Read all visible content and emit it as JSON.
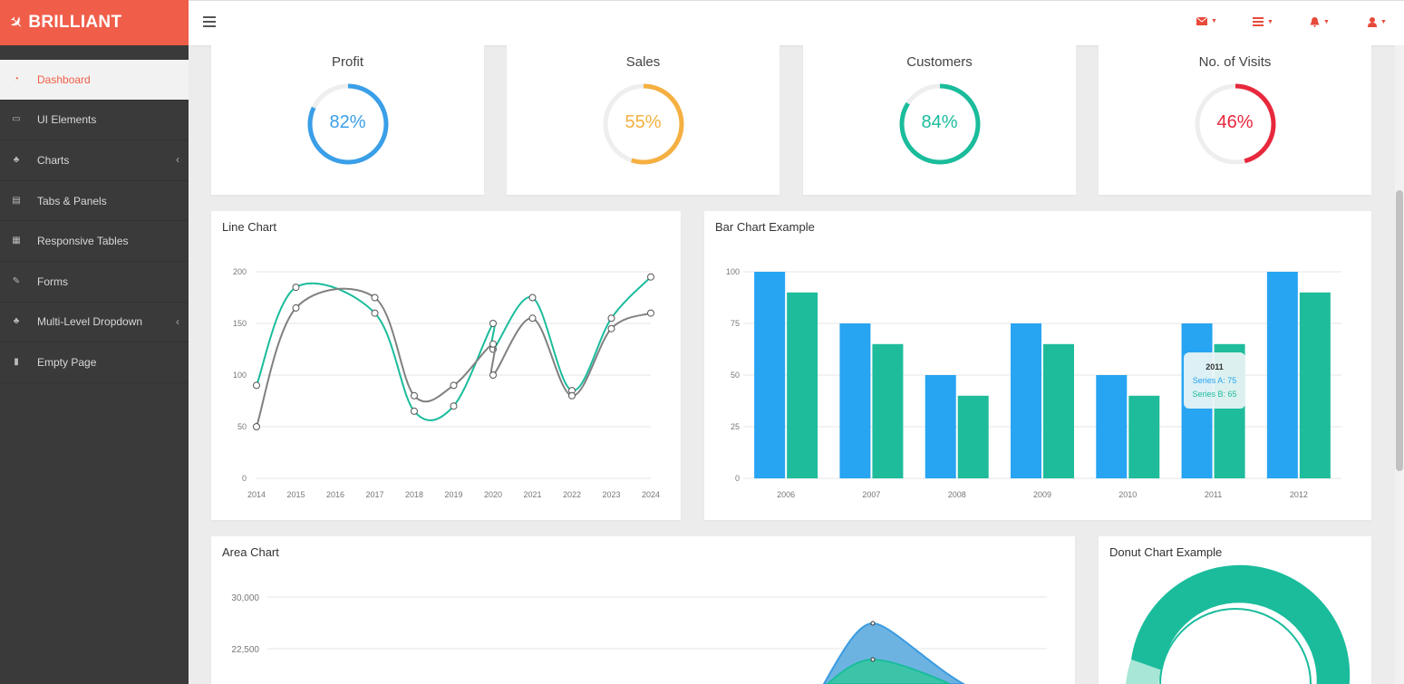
{
  "brand": {
    "name": "BRILLIANT"
  },
  "sidebar": {
    "items": [
      {
        "label": "Dashboard",
        "icon": "dashboard-icon",
        "active": true
      },
      {
        "label": "UI Elements",
        "icon": "desktop-icon"
      },
      {
        "label": "Charts",
        "icon": "sitemap-icon",
        "has_children": true
      },
      {
        "label": "Tabs & Panels",
        "icon": "panels-icon"
      },
      {
        "label": "Responsive Tables",
        "icon": "table-icon"
      },
      {
        "label": "Forms",
        "icon": "edit-icon"
      },
      {
        "label": "Multi-Level Dropdown",
        "icon": "sitemap-icon",
        "has_children": true
      },
      {
        "label": "Empty Page",
        "icon": "file-icon"
      }
    ]
  },
  "topbar": {
    "icons": [
      "envelope-icon",
      "tasks-icon",
      "bell-icon",
      "user-icon"
    ],
    "accent": "#e84a3a"
  },
  "stats": [
    {
      "title": "Profit",
      "value": 82,
      "label": "82%",
      "color": "#3a9fe8"
    },
    {
      "title": "Sales",
      "value": 55,
      "label": "55%",
      "color": "#f5b041"
    },
    {
      "title": "Customers",
      "value": 84,
      "label": "84%",
      "color": "#1abc9c"
    },
    {
      "title": "No. of Visits",
      "value": 46,
      "label": "46%",
      "color": "#e8283c"
    }
  ],
  "line_chart": {
    "title": "Line Chart",
    "chart_data": {
      "type": "line",
      "x": [
        "2014",
        "2015",
        "2016",
        "2017",
        "2018",
        "2019",
        "2020",
        "2020",
        "2021",
        "2022",
        "2023",
        "2024"
      ],
      "x_ticks": [
        "2014",
        "2015",
        "2016",
        "2017",
        "2018",
        "2019",
        "2020",
        "2021",
        "2022",
        "2023",
        "2024"
      ],
      "y_ticks": [
        "0",
        "50",
        "100",
        "150",
        "200"
      ],
      "ylim": [
        0,
        200
      ],
      "series": [
        {
          "values": [
            90,
            185,
            null,
            160,
            65,
            70,
            150,
            125,
            175,
            85,
            155,
            195
          ],
          "color": "#1abc9c"
        },
        {
          "values": [
            50,
            165,
            null,
            175,
            80,
            90,
            130,
            100,
            155,
            80,
            145,
            160
          ],
          "color": "#808080"
        }
      ]
    }
  },
  "bar_chart": {
    "title": "Bar Chart Example",
    "chart_data": {
      "type": "bar",
      "categories": [
        "2006",
        "2007",
        "2008",
        "2009",
        "2010",
        "2011",
        "2012"
      ],
      "y_ticks": [
        "0",
        "25",
        "50",
        "75",
        "100"
      ],
      "ylim": [
        0,
        100
      ],
      "series": [
        {
          "name": "Series A",
          "values": [
            100,
            75,
            50,
            75,
            50,
            75,
            100
          ],
          "color": "#27a4f2"
        },
        {
          "name": "Series B",
          "values": [
            90,
            65,
            40,
            65,
            40,
            65,
            90
          ],
          "color": "#1fbc9c"
        }
      ]
    },
    "tooltip": {
      "title": "2011",
      "line_a": "Series A: 75",
      "line_b": "Series B: 65"
    }
  },
  "area_chart": {
    "title": "Area Chart",
    "chart_data": {
      "type": "area",
      "y_ticks": [
        "30,000",
        "22,500"
      ],
      "colors": [
        "#4aa3df",
        "#1abc9c"
      ]
    }
  },
  "donut_chart": {
    "title": "Donut Chart Example",
    "chart_data": {
      "type": "pie",
      "colors": [
        "#1abc9c",
        "#a8e6d7"
      ]
    }
  }
}
